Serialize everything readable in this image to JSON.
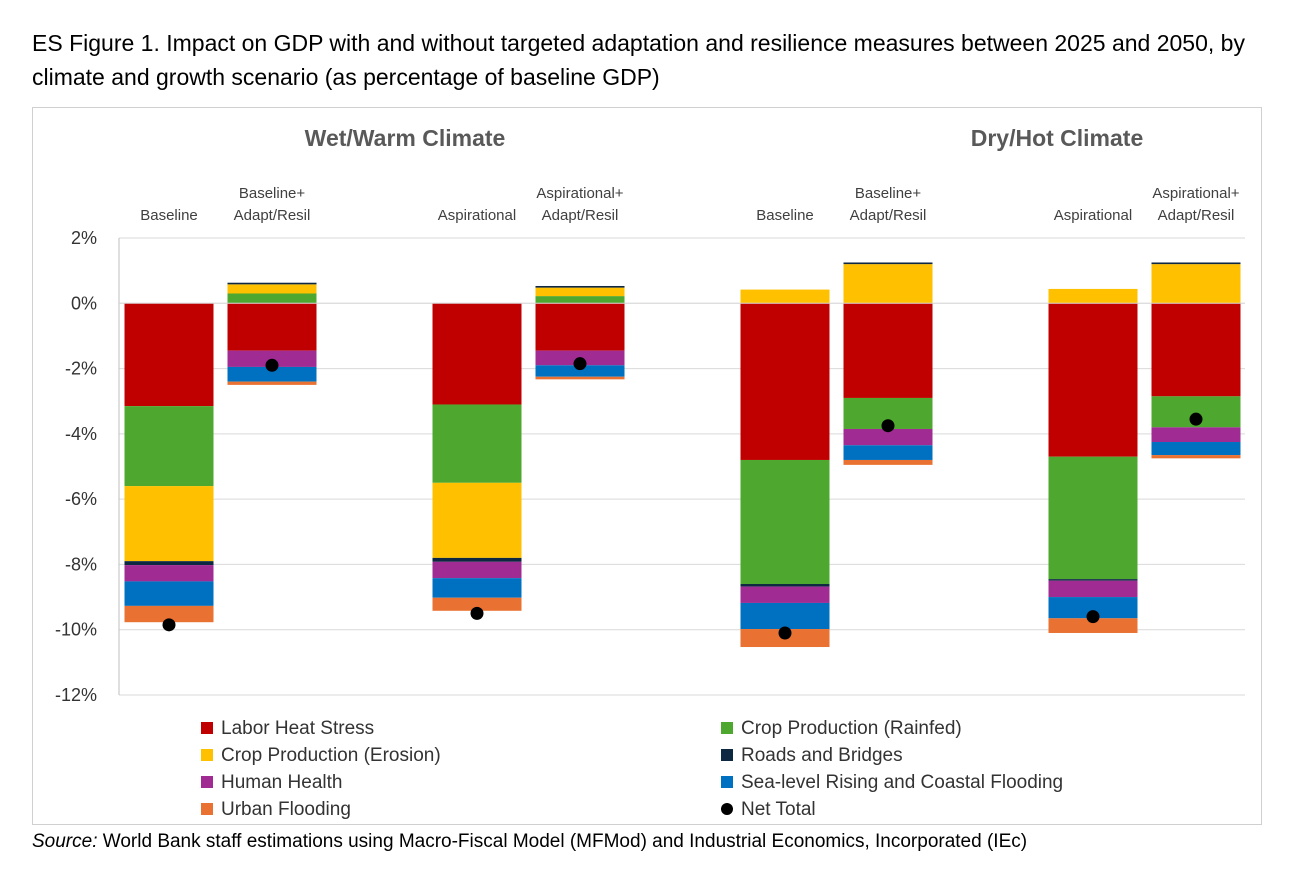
{
  "figure": {
    "title": "ES Figure 1. Impact on GDP with and without targeted adaptation and resilience measures between 2025 and 2050, by climate and growth scenario (as percentage of baseline GDP)",
    "source_label": "Source:",
    "source_text": " World Bank staff estimations using Macro-Fiscal Model (MFMod) and Industrial Economics, Incorporated (IEc)"
  },
  "chart_data": {
    "type": "bar",
    "stacked": true,
    "groups": [
      "Wet/Warm Climate",
      "Dry/Hot Climate"
    ],
    "categories": [
      {
        "group": "Wet/Warm Climate",
        "label_lines": [
          "Baseline"
        ]
      },
      {
        "group": "Wet/Warm Climate",
        "label_lines": [
          "Baseline+",
          "Adapt/Resil"
        ]
      },
      {
        "group": "Wet/Warm Climate",
        "label_lines": [
          "Aspirational"
        ]
      },
      {
        "group": "Wet/Warm Climate",
        "label_lines": [
          "Aspirational+",
          "Adapt/Resil"
        ]
      },
      {
        "group": "Dry/Hot Climate",
        "label_lines": [
          "Baseline"
        ]
      },
      {
        "group": "Dry/Hot Climate",
        "label_lines": [
          "Baseline+",
          "Adapt/Resil"
        ]
      },
      {
        "group": "Dry/Hot Climate",
        "label_lines": [
          "Aspirational"
        ]
      },
      {
        "group": "Dry/Hot Climate",
        "label_lines": [
          "Aspirational+",
          "Adapt/Resil"
        ]
      }
    ],
    "series": [
      {
        "name": "Labor Heat Stress",
        "color": "#c00000",
        "values": [
          -3.15,
          -1.45,
          -3.1,
          -1.45,
          -4.8,
          -2.9,
          -4.7,
          -2.85
        ]
      },
      {
        "name": "Crop Production (Rainfed)",
        "color": "#4ea72e",
        "values": [
          -2.45,
          0.3,
          -2.4,
          0.22,
          -3.8,
          -0.95,
          -3.75,
          -0.95
        ]
      },
      {
        "name": "Crop Production (Erosion)",
        "color": "#ffc000",
        "values": [
          -2.3,
          0.28,
          -2.3,
          0.26,
          0.42,
          1.2,
          0.44,
          1.2
        ]
      },
      {
        "name": "Roads and Bridges",
        "color": "#0e2841",
        "values": [
          -0.12,
          0.05,
          -0.12,
          0.05,
          -0.08,
          0.05,
          -0.05,
          0.05
        ]
      },
      {
        "name": "Human Health",
        "color": "#a02b93",
        "values": [
          -0.5,
          -0.5,
          -0.5,
          -0.45,
          -0.5,
          -0.5,
          -0.5,
          -0.45
        ]
      },
      {
        "name": "Sea-level Rising and Coastal Flooding",
        "color": "#0070c0",
        "values": [
          -0.75,
          -0.45,
          -0.6,
          -0.35,
          -0.8,
          -0.45,
          -0.65,
          -0.4
        ]
      },
      {
        "name": "Urban Flooding",
        "color": "#e97132",
        "values": [
          -0.5,
          -0.1,
          -0.4,
          -0.08,
          -0.55,
          -0.15,
          -0.45,
          -0.1
        ]
      }
    ],
    "net_total": {
      "name": "Net Total",
      "color": "#000000",
      "values": [
        -9.85,
        -1.9,
        -9.5,
        -1.85,
        -10.1,
        -3.75,
        -9.6,
        -3.55
      ]
    },
    "y_axis": {
      "min": -12,
      "max": 2,
      "step": 2,
      "tick_labels": [
        "2%",
        "0%",
        "-2%",
        "-4%",
        "-6%",
        "-8%",
        "-10%",
        "-12%"
      ]
    },
    "xlabel": "",
    "ylabel": "",
    "grid": true,
    "legend_position": "bottom"
  }
}
